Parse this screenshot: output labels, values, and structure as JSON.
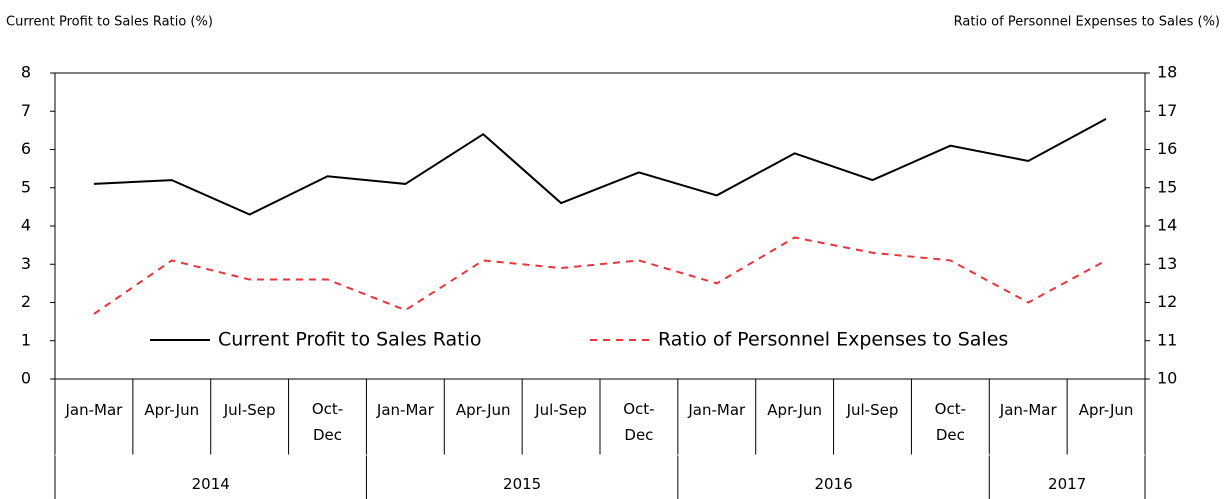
{
  "chart_data": {
    "type": "line",
    "ylabel": "Current Profit to Sales Ratio (%)",
    "y2label": "Ratio of Personnel Expenses to Sales  (%)",
    "categories": [
      "Jan-Mar",
      "Apr-Jun",
      "Jul-Sep",
      "Oct-Dec",
      "Jan-Mar",
      "Apr-Jun",
      "Jul-Sep",
      "Oct-Dec",
      "Jan-Mar",
      "Apr-Jun",
      "Jul-Sep",
      "Oct-Dec",
      "Jan-Mar",
      "Apr-Jun"
    ],
    "x_groups": [
      {
        "label": "2014",
        "span": 4
      },
      {
        "label": "2015",
        "span": 4
      },
      {
        "label": "2016",
        "span": 4
      },
      {
        "label": "2017",
        "span": 2
      }
    ],
    "series": [
      {
        "name": "Current Profit to Sales Ratio",
        "color": "#000000",
        "dash": false,
        "values": [
          5.1,
          5.2,
          4.3,
          5.3,
          5.1,
          6.4,
          4.6,
          5.4,
          4.8,
          5.9,
          5.2,
          6.1,
          5.7,
          6.8
        ]
      },
      {
        "name": "Ratio of Personnel Expenses to Sales",
        "color": "#e8353a",
        "dash": true,
        "axis": "y2",
        "values": [
          11.7,
          13.1,
          12.6,
          12.6,
          11.8,
          13.1,
          12.9,
          13.1,
          12.5,
          13.7,
          13.3,
          13.1,
          12.0,
          13.1
        ]
      }
    ],
    "ylim": [
      0,
      8
    ],
    "yticks": [
      0,
      1,
      2,
      3,
      4,
      5,
      6,
      7,
      8
    ],
    "y2lim": [
      10,
      18
    ],
    "y2ticks": [
      10,
      11,
      12,
      13,
      14,
      15,
      16,
      17,
      18
    ],
    "legend": "bottom"
  }
}
